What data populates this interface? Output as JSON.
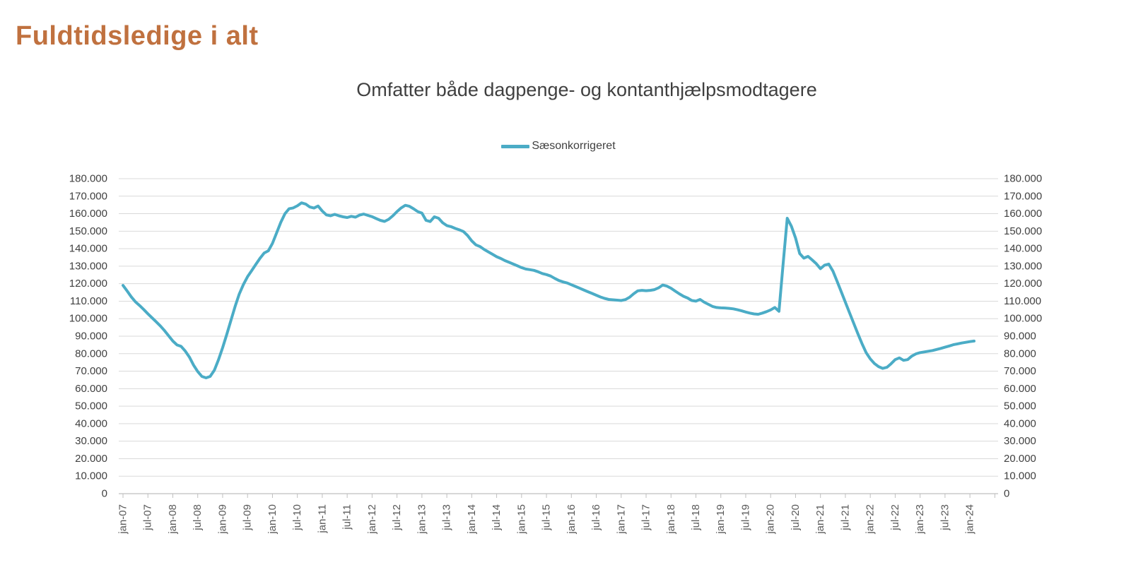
{
  "page": {
    "title": "Fuldtidsledige i alt",
    "title_color": "#C0713F"
  },
  "legend": {
    "label": "Sæsonkorrigeret",
    "swatch_color": "#4BACC6"
  },
  "colors": {
    "line": "#4BACC6",
    "gridline": "#D9D9D9",
    "axis_line": "#BFBFBF",
    "y_label_text": "#404040",
    "x_label_text": "#595959"
  },
  "chart_data": {
    "type": "line",
    "title": "Omfatter både dagpenge- og kontanthjælpsmodtagere",
    "legend_position": "top-center",
    "grid": "horizontal",
    "ylim": [
      0,
      180000
    ],
    "y_tick_step": 10000,
    "y_tick_labels": [
      "0",
      "10.000",
      "20.000",
      "30.000",
      "40.000",
      "50.000",
      "60.000",
      "70.000",
      "80.000",
      "90.000",
      "100.000",
      "110.000",
      "120.000",
      "130.000",
      "140.000",
      "150.000",
      "160.000",
      "170.000",
      "180.000"
    ],
    "x_frequency": "monthly",
    "x_range": "jan-07 to feb-24",
    "x_tick_labels": [
      "jan-07",
      "jul-07",
      "jan-08",
      "jul-08",
      "jan-09",
      "jul-09",
      "jan-10",
      "jul-10",
      "jan-11",
      "jul-11",
      "jan-12",
      "jul-12",
      "jan-13",
      "jul-13",
      "jan-14",
      "jul-14",
      "jan-15",
      "jul-15",
      "jan-16",
      "jul-16",
      "jan-17",
      "jul-17",
      "jan-18",
      "jul-18",
      "jan-19",
      "jul-19",
      "jan-20",
      "jul-20",
      "jan-21",
      "jul-21",
      "jan-22",
      "jul-22",
      "jan-23",
      "jul-23",
      "jan-24"
    ],
    "series": [
      {
        "name": "Sæsonkorrigeret",
        "color": "#4BACC6",
        "values": [
          119000,
          115800,
          112500,
          109600,
          107500,
          105200,
          102800,
          100500,
          98200,
          95800,
          93200,
          90200,
          87200,
          85000,
          84200,
          81500,
          78000,
          73500,
          69800,
          67000,
          66200,
          67000,
          70500,
          76500,
          83500,
          91000,
          99000,
          107000,
          114000,
          119500,
          124000,
          127500,
          131000,
          134500,
          137500,
          138800,
          143000,
          149000,
          155000,
          160000,
          162800,
          163300,
          164500,
          166200,
          165500,
          163800,
          163200,
          164400,
          161500,
          159300,
          158800,
          159600,
          158800,
          158200,
          157800,
          158500,
          158000,
          159200,
          159800,
          159000,
          158300,
          157200,
          156200,
          155600,
          156800,
          158800,
          161200,
          163300,
          164800,
          164200,
          162800,
          161200,
          160300,
          156200,
          155500,
          158200,
          157400,
          154800,
          153200,
          152600,
          151600,
          150800,
          149800,
          147500,
          144500,
          142200,
          141200,
          139500,
          138200,
          136800,
          135400,
          134400,
          133200,
          132200,
          131200,
          130200,
          129200,
          128400,
          128000,
          127600,
          126800,
          125800,
          125200,
          124400,
          123000,
          121800,
          121000,
          120400,
          119400,
          118400,
          117400,
          116400,
          115400,
          114400,
          113400,
          112400,
          111600,
          111000,
          110800,
          110600,
          110400,
          110900,
          112200,
          114200,
          115900,
          116200,
          116000,
          116200,
          116600,
          117600,
          119200,
          118600,
          117400,
          115800,
          114200,
          112800,
          111800,
          110400,
          110000,
          111000,
          109400,
          108200,
          107000,
          106400,
          106200,
          106100,
          105900,
          105600,
          105100,
          104500,
          103800,
          103200,
          102700,
          102500,
          103200,
          104000,
          105000,
          106400,
          104200,
          131000,
          157400,
          152800,
          146000,
          137200,
          134600,
          135600,
          133600,
          131400,
          128600,
          130600,
          131200,
          127200,
          121400,
          115400,
          109400,
          103400,
          97400,
          91400,
          85800,
          80600,
          77000,
          74400,
          72600,
          71600,
          72200,
          74200,
          76600,
          77600,
          76200,
          76600,
          78600,
          79900,
          80600,
          81000,
          81400,
          81800,
          82400,
          83000,
          83700,
          84400,
          85100,
          85600,
          86100,
          86500,
          86900,
          87200
        ]
      }
    ]
  }
}
